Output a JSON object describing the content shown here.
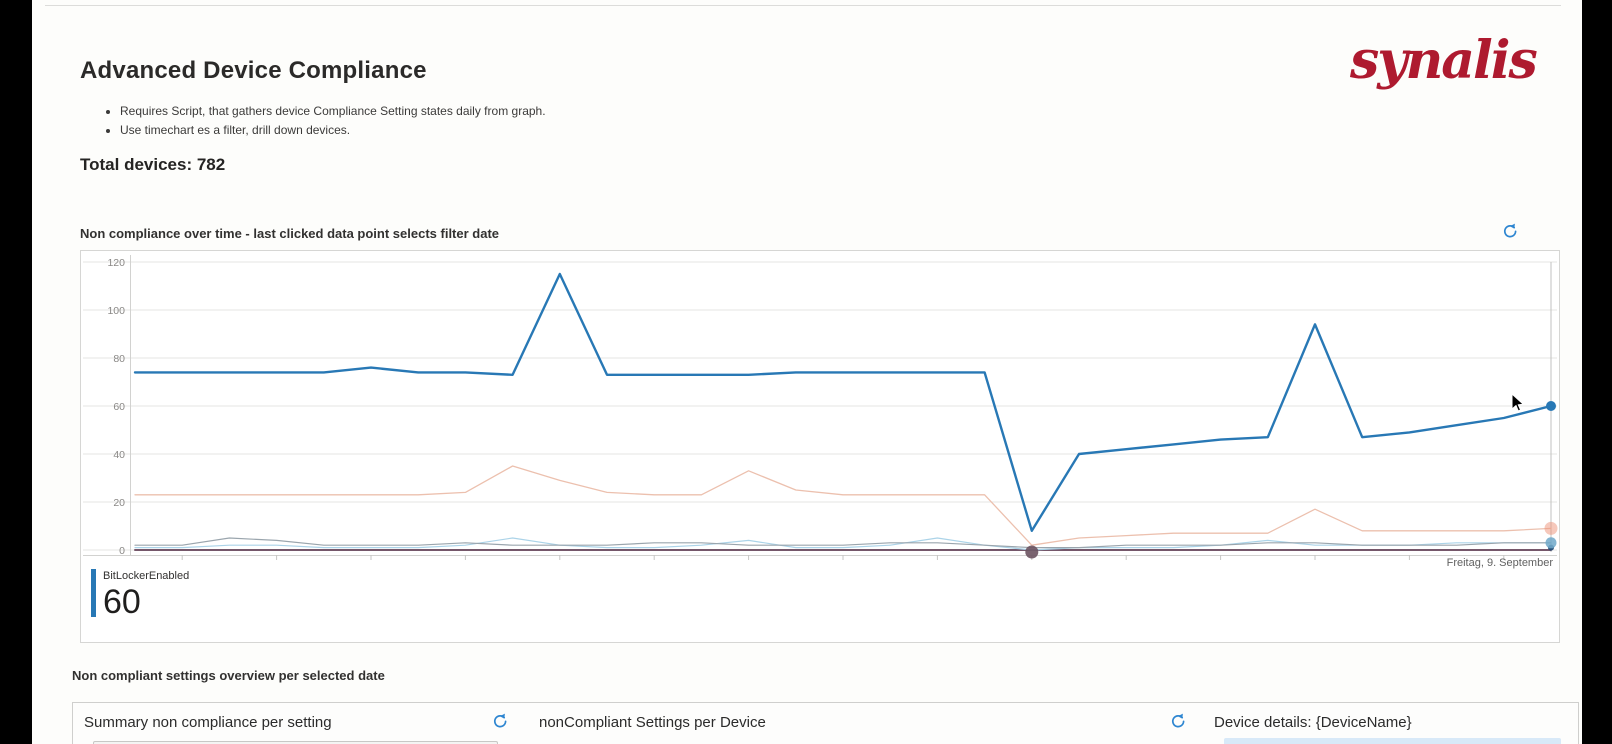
{
  "page": {
    "title": "Advanced Device Compliance",
    "logo_text": "synalis",
    "bullets": [
      "Requires Script, that gathers device Compliance Setting states daily from graph.",
      "Use timechart es a filter, drill down devices."
    ],
    "total_devices": "Total devices: 782"
  },
  "timechart": {
    "title": "Non compliance over time - last clicked data point selects filter date",
    "x_axis_label": "Freitag, 9. September",
    "legend": {
      "name": "BitLockerEnabled",
      "value": "60"
    }
  },
  "chart_data": {
    "type": "line",
    "title": "Non compliance over time - last clicked data point selects filter date",
    "x_unit": "day (daily points, only last x label shown)",
    "x_last_label": "Freitag, 9. September",
    "ylim": [
      0,
      120
    ],
    "y_ticks": [
      0,
      20,
      40,
      60,
      80,
      100,
      120
    ],
    "grid": "horizontal",
    "legend_position": "bottom-left",
    "series": [
      {
        "name": "BitLockerEnabled",
        "color": "#2878b5",
        "width": 2.4,
        "values": [
          74,
          74,
          74,
          74,
          74,
          76,
          74,
          74,
          73,
          115,
          73,
          73,
          73,
          73,
          74,
          74,
          74,
          74,
          74,
          8,
          40,
          42,
          44,
          46,
          47,
          94,
          47,
          49,
          52,
          55,
          60
        ]
      },
      {
        "name": "unlabeled-salmon",
        "color": "#ecc0ae",
        "width": 1.3,
        "values": [
          23,
          23,
          23,
          23,
          23,
          23,
          23,
          24,
          35,
          29,
          24,
          23,
          23,
          33,
          25,
          23,
          23,
          23,
          23,
          2,
          5,
          6,
          7,
          7,
          7,
          17,
          8,
          8,
          8,
          8,
          9
        ]
      },
      {
        "name": "unlabeled-gray",
        "color": "#9aa5ad",
        "width": 1.2,
        "values": [
          2,
          2,
          5,
          4,
          2,
          2,
          2,
          3,
          2,
          2,
          2,
          3,
          3,
          2,
          2,
          2,
          3,
          3,
          2,
          1,
          1,
          2,
          2,
          2,
          3,
          3,
          2,
          2,
          2,
          3,
          3
        ]
      },
      {
        "name": "unlabeled-lightblue",
        "color": "#abd3e8",
        "width": 1.2,
        "values": [
          1,
          1,
          2,
          2,
          1,
          1,
          1,
          2,
          5,
          2,
          1,
          1,
          2,
          4,
          1,
          1,
          2,
          5,
          2,
          0,
          1,
          1,
          1,
          2,
          4,
          2,
          2,
          2,
          3,
          3,
          3
        ]
      },
      {
        "name": "unlabeled-purple",
        "color": "#75576a",
        "width": 2,
        "values": [
          0,
          0,
          0,
          0,
          0,
          0,
          0,
          0,
          0,
          0,
          0,
          0,
          0,
          0,
          0,
          0,
          0,
          0,
          0,
          0,
          0,
          0,
          0,
          0,
          0,
          0,
          0,
          0,
          0,
          0,
          0
        ]
      }
    ],
    "selected_point": {
      "series": "BitLockerEnabled",
      "value": 60,
      "x_label": "Freitag, 9. September"
    },
    "end_markers": [
      {
        "value": 60,
        "r": 5,
        "color": "#2878b5",
        "opacity": 1
      },
      {
        "value": 9,
        "r": 6.5,
        "color": "#ed9178",
        "opacity": 0.5
      },
      {
        "value": 3,
        "r": 5.5,
        "color": "#6fa8c9",
        "opacity": 0.85
      },
      {
        "value": 1,
        "r": 3,
        "color": "#1f4e79",
        "opacity": 0.9
      }
    ],
    "clicked_marker": {
      "x_index": 19,
      "value": 0,
      "r": 6.5,
      "color": "#6b5360",
      "opacity": 0.9
    }
  },
  "bottom": {
    "heading": "Non compliant settings overview per selected date",
    "panels": [
      {
        "title": "Summary non compliance per setting"
      },
      {
        "title": "nonCompliant Settings per Device"
      },
      {
        "title": "Device details: {DeviceName}"
      }
    ]
  }
}
